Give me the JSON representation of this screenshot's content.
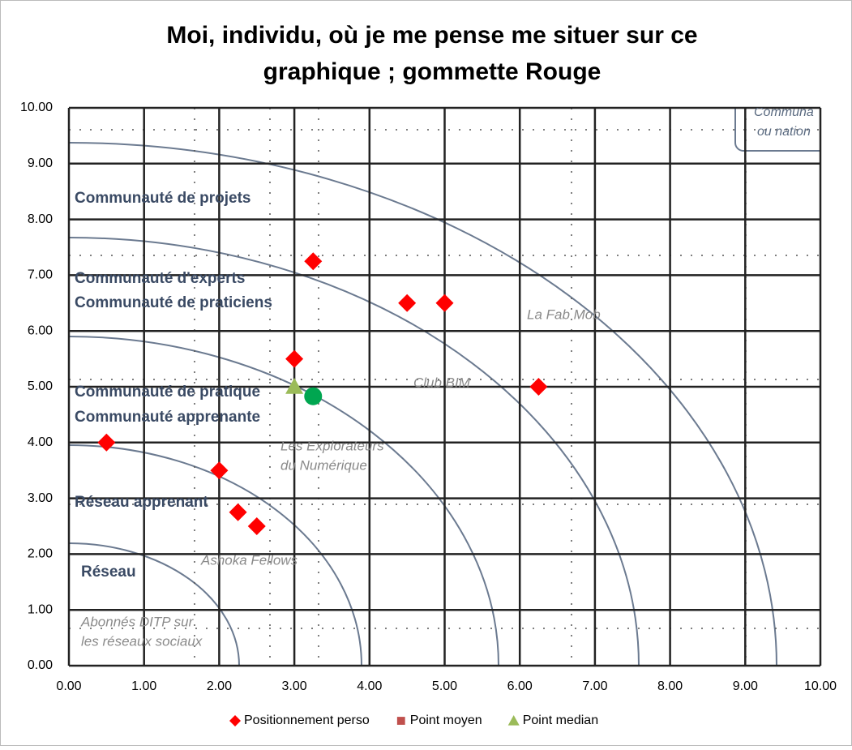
{
  "chart_data": {
    "type": "scatter",
    "title": [
      "Moi, individu, où je me pense me situer sur ce",
      "graphique ; gommette Rouge"
    ],
    "xlim": [
      0,
      10
    ],
    "ylim": [
      0,
      10
    ],
    "xticks": [
      {
        "value": 0,
        "label": "0.00"
      },
      {
        "value": 1,
        "label": "1.00"
      },
      {
        "value": 2,
        "label": "2.00"
      },
      {
        "value": 3,
        "label": "3.00"
      },
      {
        "value": 4,
        "label": "4.00"
      },
      {
        "value": 5,
        "label": "5.00"
      },
      {
        "value": 6,
        "label": "6.00"
      },
      {
        "value": 7,
        "label": "7.00"
      },
      {
        "value": 8,
        "label": "8.00"
      },
      {
        "value": 9,
        "label": "9.00"
      },
      {
        "value": 10,
        "label": "10.00"
      }
    ],
    "yticks": [
      {
        "value": 0,
        "label": "0.00"
      },
      {
        "value": 1,
        "label": "1.00"
      },
      {
        "value": 2,
        "label": "2.00"
      },
      {
        "value": 3,
        "label": "3.00"
      },
      {
        "value": 4,
        "label": "4.00"
      },
      {
        "value": 5,
        "label": "5.00"
      },
      {
        "value": 6,
        "label": "6.00"
      },
      {
        "value": 7,
        "label": "7.00"
      },
      {
        "value": 8,
        "label": "8.00"
      },
      {
        "value": 9,
        "label": "9.00"
      },
      {
        "value": 10,
        "label": "10.00"
      }
    ],
    "grid": true,
    "legend": "bottom",
    "series": [
      {
        "name": "Positionnement perso",
        "color": "#ff0000",
        "marker": "diamond",
        "x": [
          3.25,
          4.5,
          5.0,
          3.0,
          6.25,
          0.5,
          2.0,
          2.25,
          2.5
        ],
        "values": [
          7.25,
          6.5,
          6.5,
          5.5,
          5.0,
          4.0,
          3.5,
          2.75,
          2.5
        ]
      },
      {
        "name": "Point moyen",
        "color": "#00a650",
        "legend_color": "#c0504d",
        "marker": "circle",
        "x": [
          3.25
        ],
        "values": [
          4.83
        ]
      },
      {
        "name": "Point median",
        "color": "#9bbb59",
        "marker": "triangle",
        "x": [
          3.0
        ],
        "values": [
          5.0
        ]
      }
    ],
    "zone_labels": [
      "Communauté de projets",
      "Communauté d'experts",
      "Communauté de praticiens",
      "Communauté de pratique",
      "Communauté apprenante",
      "Réseau apprenant",
      "Réseau"
    ],
    "example_labels": [
      "La Fab Mob",
      "Club BIM",
      "Les Explorateurs",
      "du Numérique",
      "Ashoka Fellows",
      "Abonnés DITP sur",
      "les réseaux sociaux"
    ],
    "corner_box": [
      "Communa",
      "ou nation"
    ]
  }
}
